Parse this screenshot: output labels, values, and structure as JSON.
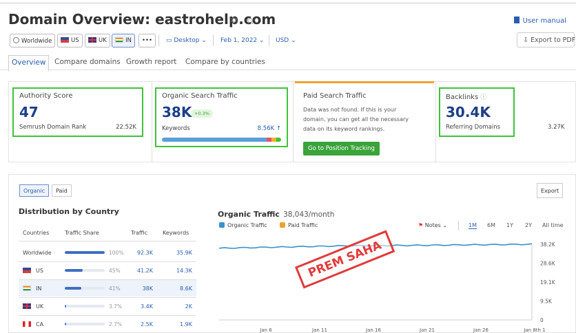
{
  "header": {
    "title_prefix": "Domain Overview:",
    "domain": "eastrohelp.com",
    "user_manual": "User manual",
    "export_pdf": "Export to PDF"
  },
  "filters": {
    "worldwide": "Worldwide",
    "us": "US",
    "uk": "UK",
    "in": "IN",
    "more": "•••",
    "device": "Desktop",
    "date": "Feb 1, 2022",
    "currency": "USD"
  },
  "tabs": [
    "Overview",
    "Compare domains",
    "Growth report",
    "Compare by countries"
  ],
  "cards": {
    "authority": {
      "label": "Authority Score",
      "value": "47",
      "sub_label": "Semrush Domain Rank",
      "sub_value": "22.52K"
    },
    "organic": {
      "label": "Organic Search Traffic",
      "value": "38K",
      "badge": "+0.3%",
      "sub_label": "Keywords",
      "sub_value": "8.56K ↑"
    },
    "paid": {
      "label": "Paid Search Traffic",
      "text1": "Data was not found. If this is your",
      "text2": "domain, you can get all the necessary",
      "text3": "data on its keyword rankings.",
      "button": "Go to Position Tracking"
    },
    "backlinks": {
      "label": "Backlinks",
      "info": "ⓘ",
      "value": "30.4K",
      "sub_label": "Referring Domains",
      "sub_value": "3.27K"
    }
  },
  "section": {
    "organic_btn": "Organic",
    "paid_btn": "Paid",
    "export": "Export"
  },
  "distribution": {
    "title": "Distribution by Country",
    "headers": [
      "Countries",
      "Traffic Share",
      "Traffic",
      "Keywords"
    ],
    "rows": [
      {
        "country": "Worldwide",
        "share": 100,
        "share_label": "100%",
        "traffic": "92.3K",
        "keywords": "35.9K"
      },
      {
        "country": "US",
        "share": 45,
        "share_label": "45%",
        "traffic": "41.2K",
        "keywords": "14.3K"
      },
      {
        "country": "IN",
        "share": 41,
        "share_label": "41%",
        "traffic": "38K",
        "keywords": "8.6K"
      },
      {
        "country": "UK",
        "share": 3.7,
        "share_label": "3.7%",
        "traffic": "3.4K",
        "keywords": "2K"
      },
      {
        "country": "CA",
        "share": 2.7,
        "share_label": "2.7%",
        "traffic": "2.5K",
        "keywords": "1.9K"
      }
    ]
  },
  "traffic": {
    "title": "Organic Traffic",
    "value": "38,043/month",
    "legend_organic": "Organic Traffic",
    "legend_paid": "Paid Traffic",
    "notes": "Notes",
    "ranges": [
      "1M",
      "6M",
      "1Y",
      "2Y",
      "All time"
    ],
    "active_range": "1M"
  },
  "colors": {
    "accent": "#2a5db0",
    "highlight": "#3ec23a",
    "organic": "#3a90c8",
    "paid": "#f0a030",
    "stamp": "#e23a3a"
  },
  "stamp": "PREM SAHA",
  "chart_data": {
    "type": "line",
    "title": "Organic Traffic",
    "x": [
      "Jan 6",
      "Jan 11",
      "Jan 16",
      "Jan 21",
      "Jan 26",
      "Jan 8th 1"
    ],
    "series": [
      {
        "name": "Organic Traffic",
        "values": [
          36200,
          36800,
          37400,
          37600,
          37900,
          38200
        ]
      }
    ],
    "xlabels": [
      "Jan 6",
      "Jan 11",
      "Jan 16",
      "Jan 21",
      "Jan 26",
      "Jan 8th 1"
    ],
    "yticks": [
      "38.2K",
      "28.6K",
      "19.1K",
      "9.5K",
      "0"
    ],
    "ylim": [
      0,
      38200
    ],
    "grid": false
  }
}
